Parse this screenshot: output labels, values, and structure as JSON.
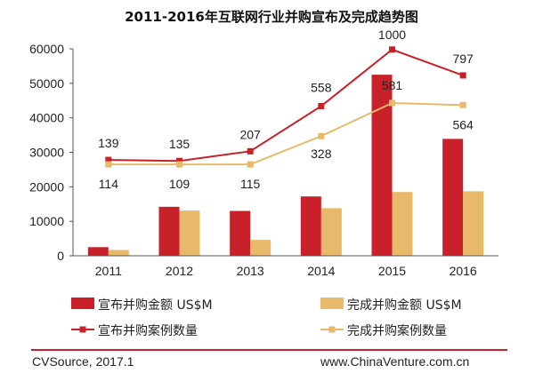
{
  "chart_data": {
    "type": "bar",
    "title": "2011-2016年互联网行业并购宣布及完成趋势图",
    "categories": [
      "2011",
      "2012",
      "2013",
      "2014",
      "2015",
      "2016"
    ],
    "ylim": [
      0,
      60000
    ],
    "yticks": [
      "0",
      "10000",
      "20000",
      "30000",
      "40000",
      "50000",
      "60000"
    ],
    "bar_series": [
      {
        "name": "宣布并购金额 US$M",
        "color": "#c8212a",
        "values": [
          2500,
          14200,
          13000,
          17200,
          52500,
          33900
        ]
      },
      {
        "name": "完成并购金额 US$M",
        "color": "#e8b96a",
        "values": [
          1700,
          13100,
          4600,
          13800,
          18500,
          18700
        ]
      }
    ],
    "line_series": [
      {
        "name": "宣布并购案例数量",
        "color": "#c8212a",
        "counts": [
          139,
          135,
          207,
          558,
          1000,
          797
        ],
        "values": [
          27800,
          27500,
          30300,
          43400,
          59800,
          52300
        ]
      },
      {
        "name": "完成并购案例数量",
        "color": "#e8b96a",
        "counts": [
          114,
          109,
          115,
          328,
          581,
          564
        ],
        "values": [
          26500,
          26500,
          26500,
          34700,
          44300,
          43700
        ]
      }
    ],
    "legend": [
      "宣布并购金额 US$M",
      "完成并购金额 US$M",
      "宣布并购案例数量",
      "完成并购案例数量"
    ],
    "grid": false,
    "legend_position": "bottom"
  },
  "footer": {
    "source": "CVSource, 2017.1",
    "website": "www.ChinaVenture.com.cn"
  }
}
